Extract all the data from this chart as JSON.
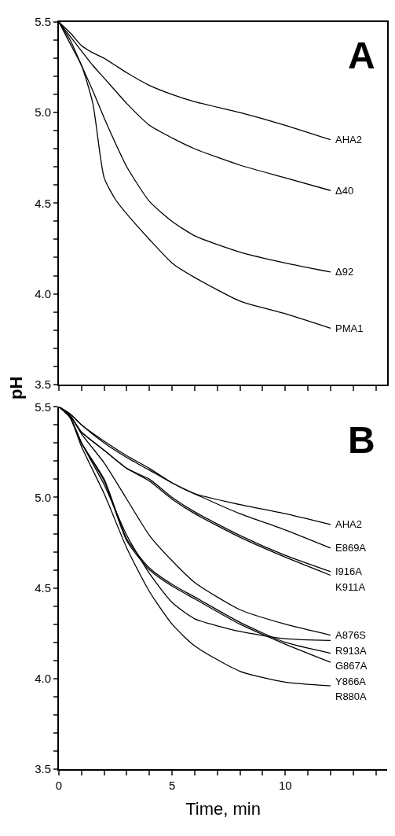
{
  "chart_data": [
    {
      "type": "line",
      "ylabel": "pH",
      "annotations": [
        "A"
      ],
      "tick_labels": "y",
      "xlim": [
        0,
        14.5
      ],
      "xticks": [
        0,
        {
          "value": 1,
          "label": null
        },
        {
          "value": 2,
          "label": null
        },
        {
          "value": 3,
          "label": null
        },
        {
          "value": 4,
          "label": null
        },
        {
          "value": 5,
          "label": null
        },
        {
          "value": 6,
          "label": null
        },
        {
          "value": 7,
          "label": null
        },
        {
          "value": 8,
          "label": null
        },
        {
          "value": 9,
          "label": null
        },
        {
          "value": 10,
          "label": null
        },
        {
          "value": 11,
          "label": null
        },
        {
          "value": 12,
          "label": null
        },
        {
          "value": 13,
          "label": null
        },
        {
          "value": 14,
          "label": null
        }
      ],
      "ylim": [
        3.5,
        5.5
      ],
      "yticks": [
        {
          "value": 3.5,
          "label": "3.5"
        },
        {
          "value": 3.6,
          "label": null
        },
        {
          "value": 3.7,
          "label": null
        },
        {
          "value": 3.8,
          "label": null
        },
        {
          "value": 3.9,
          "label": null
        },
        {
          "value": 4.0,
          "label": "4.0"
        },
        {
          "value": 4.1,
          "label": null
        },
        {
          "value": 4.2,
          "label": null
        },
        {
          "value": 4.3,
          "label": null
        },
        {
          "value": 4.4,
          "label": null
        },
        {
          "value": 4.5,
          "label": "4.5"
        },
        {
          "value": 4.6,
          "label": null
        },
        {
          "value": 4.7,
          "label": null
        },
        {
          "value": 4.8,
          "label": null
        },
        {
          "value": 4.9,
          "label": null
        },
        {
          "value": 5.0,
          "label": "5.0"
        },
        {
          "value": 5.1,
          "label": null
        },
        {
          "value": 5.2,
          "label": null
        },
        {
          "value": 5.3,
          "label": null
        },
        {
          "value": 5.4,
          "label": null
        },
        {
          "value": 5.5,
          "label": "5.5"
        }
      ],
      "legend": false,
      "marker": "none",
      "line_style": "solid",
      "x": [
        0,
        0.5,
        1,
        1.5,
        2,
        2.5,
        3,
        4,
        5,
        6,
        8,
        10,
        12
      ],
      "series": [
        {
          "name": "AHA2",
          "color": "#000000",
          "values": [
            5.5,
            5.44,
            5.37,
            5.33,
            5.3,
            5.26,
            5.22,
            5.15,
            5.1,
            5.06,
            5.0,
            4.93,
            4.85
          ]
        },
        {
          "name": "Δ40",
          "color": "#000000",
          "values": [
            5.5,
            5.42,
            5.34,
            5.26,
            5.19,
            5.12,
            5.05,
            4.93,
            4.86,
            4.8,
            4.71,
            4.64,
            4.57
          ]
        },
        {
          "name": "Δ92",
          "color": "#000000",
          "values": [
            5.5,
            5.4,
            5.26,
            5.12,
            4.97,
            4.83,
            4.7,
            4.51,
            4.4,
            4.32,
            4.23,
            4.17,
            4.12
          ]
        },
        {
          "name": "PMA1",
          "color": "#000000",
          "values": [
            5.5,
            5.38,
            5.26,
            5.05,
            4.64,
            4.52,
            4.44,
            4.3,
            4.17,
            4.09,
            3.96,
            3.89,
            3.81
          ]
        }
      ]
    },
    {
      "type": "line",
      "xlabel": "Time, min",
      "annotations": [
        "B"
      ],
      "xlim": [
        0,
        14.5
      ],
      "xticks": [
        0,
        {
          "value": 1,
          "label": null
        },
        {
          "value": 2,
          "label": null
        },
        {
          "value": 3,
          "label": null
        },
        {
          "value": 4,
          "label": null
        },
        5,
        {
          "value": 6,
          "label": null
        },
        {
          "value": 7,
          "label": null
        },
        {
          "value": 8,
          "label": null
        },
        {
          "value": 9,
          "label": null
        },
        10,
        {
          "value": 11,
          "label": null
        },
        {
          "value": 12,
          "label": null
        },
        {
          "value": 13,
          "label": null
        },
        {
          "value": 14,
          "label": null
        }
      ],
      "ylim": [
        3.5,
        5.5
      ],
      "yticks": [
        {
          "value": 3.5,
          "label": "3.5"
        },
        {
          "value": 3.6,
          "label": null
        },
        {
          "value": 3.7,
          "label": null
        },
        {
          "value": 3.8,
          "label": null
        },
        {
          "value": 3.9,
          "label": null
        },
        {
          "value": 4.0,
          "label": "4.0"
        },
        {
          "value": 4.1,
          "label": null
        },
        {
          "value": 4.2,
          "label": null
        },
        {
          "value": 4.3,
          "label": null
        },
        {
          "value": 4.4,
          "label": null
        },
        {
          "value": 4.5,
          "label": "4.5"
        },
        {
          "value": 4.6,
          "label": null
        },
        {
          "value": 4.7,
          "label": null
        },
        {
          "value": 4.8,
          "label": null
        },
        {
          "value": 4.9,
          "label": null
        },
        {
          "value": 5.0,
          "label": "5.0"
        },
        {
          "value": 5.1,
          "label": null
        },
        {
          "value": 5.2,
          "label": null
        },
        {
          "value": 5.3,
          "label": null
        },
        {
          "value": 5.4,
          "label": null
        },
        {
          "value": 5.5,
          "label": "5.5"
        }
      ],
      "legend": false,
      "marker": "none",
      "line_style": "solid",
      "x": [
        0,
        0.5,
        1,
        2,
        3,
        4,
        5,
        6,
        8,
        10,
        12
      ],
      "series": [
        {
          "name": "AHA2",
          "color": "#000000",
          "values": [
            5.5,
            5.46,
            5.4,
            5.31,
            5.23,
            5.16,
            5.08,
            5.02,
            4.96,
            4.91,
            4.85
          ]
        },
        {
          "name": "E869A",
          "color": "#000000",
          "values": [
            5.5,
            5.46,
            5.4,
            5.3,
            5.22,
            5.15,
            5.08,
            5.02,
            4.91,
            4.82,
            4.72
          ]
        },
        {
          "name": "I916A",
          "color": "#000000",
          "values": [
            5.5,
            5.45,
            5.36,
            5.26,
            5.16,
            5.1,
            5.0,
            4.92,
            4.79,
            4.68,
            4.59
          ]
        },
        {
          "name": "K911A",
          "color": "#000000",
          "values": [
            5.5,
            5.45,
            5.36,
            5.26,
            5.16,
            5.09,
            4.99,
            4.91,
            4.78,
            4.67,
            4.57
          ]
        },
        {
          "name": "A876S",
          "color": "#000000",
          "values": [
            5.5,
            5.45,
            5.35,
            5.19,
            4.99,
            4.79,
            4.65,
            4.53,
            4.38,
            4.3,
            4.24
          ]
        },
        {
          "name": "R913A",
          "color": "#000000",
          "values": [
            5.5,
            5.44,
            5.3,
            5.07,
            4.79,
            4.58,
            4.42,
            4.33,
            4.26,
            4.22,
            4.21
          ]
        },
        {
          "name": "G867A",
          "color": "#000000",
          "values": [
            5.5,
            5.44,
            5.3,
            5.1,
            4.77,
            4.61,
            4.52,
            4.45,
            4.31,
            4.2,
            4.14
          ]
        },
        {
          "name": "Y866A",
          "color": "#000000",
          "values": [
            5.5,
            5.44,
            5.3,
            5.09,
            4.76,
            4.6,
            4.51,
            4.44,
            4.3,
            4.19,
            4.09
          ]
        },
        {
          "name": "R880A",
          "color": "#000000",
          "values": [
            5.5,
            5.44,
            5.28,
            5.02,
            4.72,
            4.48,
            4.3,
            4.18,
            4.04,
            3.98,
            3.96
          ]
        }
      ]
    }
  ]
}
